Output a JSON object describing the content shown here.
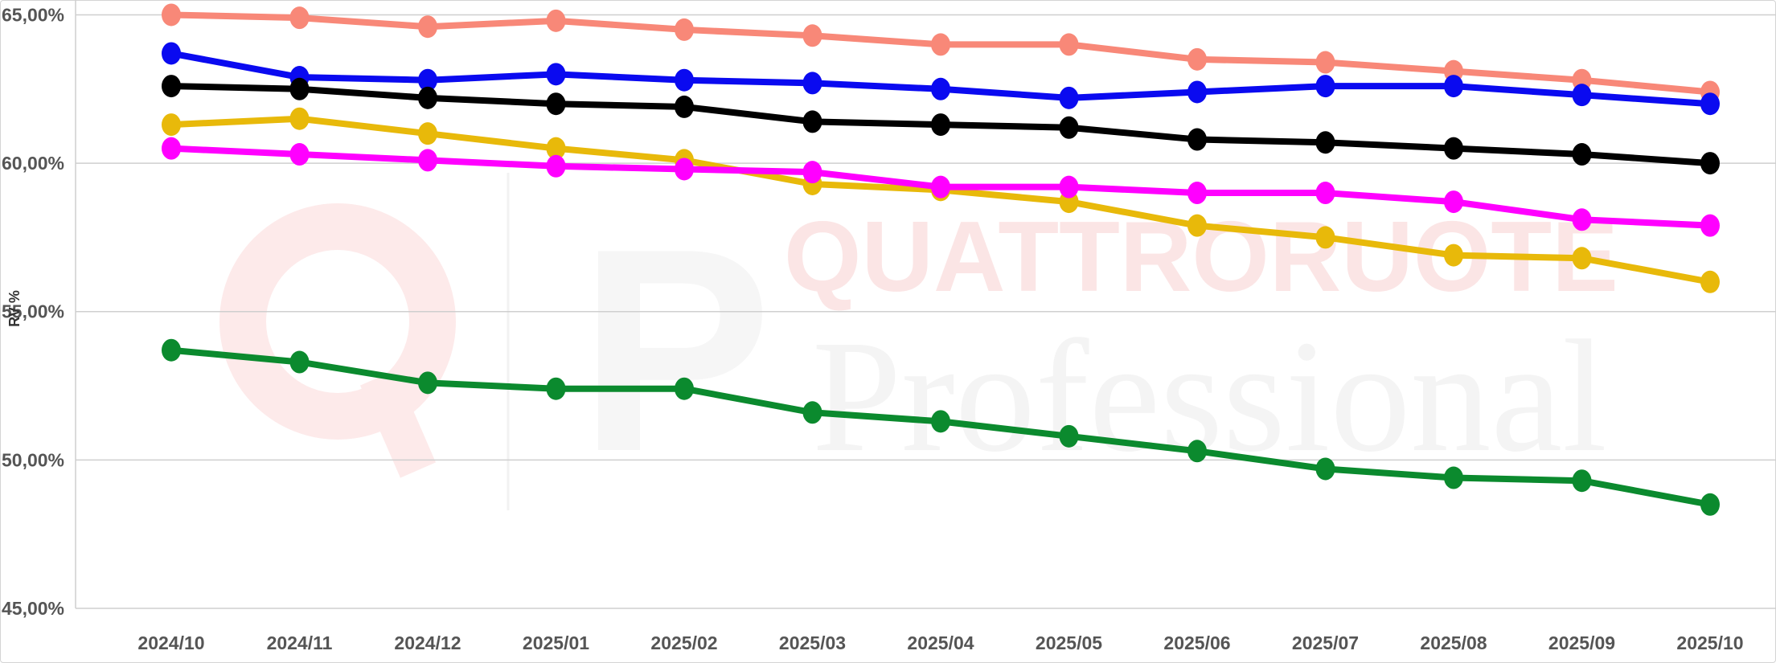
{
  "watermark": {
    "brand": "QUATTRORUOTE",
    "product": "Professional",
    "logo_letter": "Q"
  },
  "chart_data": {
    "type": "line",
    "title": "",
    "xlabel": "",
    "ylabel": "RV %",
    "ylim": [
      45,
      65.5
    ],
    "y_ticks": [
      45,
      50,
      55,
      60,
      65
    ],
    "y_tick_labels": [
      "45,00%",
      "50,00%",
      "55,00%",
      "60,00%",
      "65,00%"
    ],
    "grid": "horizontal",
    "legend": "none",
    "categories": [
      "2024/10",
      "2024/11",
      "2024/12",
      "2025/01",
      "2025/02",
      "2025/03",
      "2025/04",
      "2025/05",
      "2025/06",
      "2025/07",
      "2025/08",
      "2025/09",
      "2025/10"
    ],
    "series": [
      {
        "color": "#f88878",
        "values": [
          65.0,
          64.9,
          64.6,
          64.8,
          64.5,
          64.3,
          64.0,
          64.0,
          63.5,
          63.4,
          63.1,
          62.8,
          62.4
        ]
      },
      {
        "color": "#0a0af0",
        "values": [
          63.7,
          62.9,
          62.8,
          63.0,
          62.8,
          62.7,
          62.5,
          62.2,
          62.4,
          62.6,
          62.6,
          62.3,
          62.0
        ]
      },
      {
        "color": "#000000",
        "values": [
          62.6,
          62.5,
          62.2,
          62.0,
          61.9,
          61.4,
          61.3,
          61.2,
          60.8,
          60.7,
          60.5,
          60.3,
          60.0
        ]
      },
      {
        "color": "#e8b90a",
        "values": [
          61.3,
          61.5,
          61.0,
          60.5,
          60.1,
          59.3,
          59.1,
          58.7,
          57.9,
          57.5,
          56.9,
          56.8,
          56.0
        ]
      },
      {
        "color": "#ff00ff",
        "values": [
          60.5,
          60.3,
          60.1,
          59.9,
          59.8,
          59.7,
          59.2,
          59.2,
          59.0,
          59.0,
          58.7,
          58.1,
          57.9
        ]
      },
      {
        "color": "#0b8a2e",
        "values": [
          53.7,
          53.3,
          52.6,
          52.4,
          52.4,
          51.6,
          51.3,
          50.8,
          50.3,
          49.7,
          49.4,
          49.3,
          48.5
        ]
      }
    ]
  }
}
